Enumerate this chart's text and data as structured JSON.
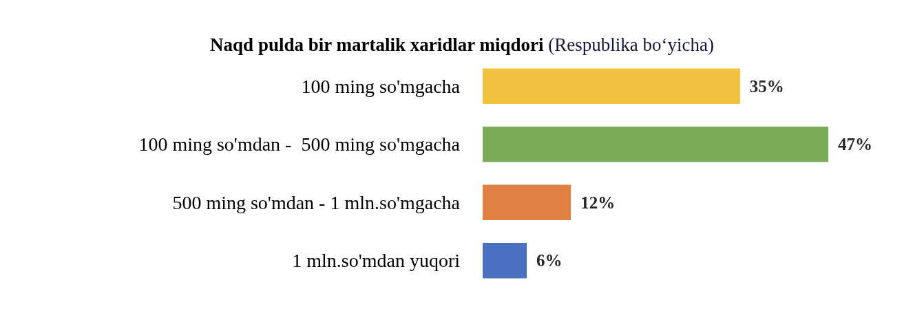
{
  "chart_data": {
    "type": "bar",
    "orientation": "horizontal",
    "title": "Naqd pulda bir martalik xaridlar miqdori",
    "subtitle": "(Respublika bo‘yicha)",
    "categories": [
      "100 ming so'mgacha",
      "100 ming so'mdan -  500 ming so'mgacha",
      "500 ming so'mdan - 1 mln.so'mgacha",
      "1 mln.so'mdan yuqori"
    ],
    "values": [
      35,
      47,
      12,
      6
    ],
    "colors": [
      "#f2c140",
      "#7aab55",
      "#e08143",
      "#4a70c0"
    ],
    "value_labels": [
      "35%",
      "47%",
      "12%",
      "6%"
    ]
  }
}
